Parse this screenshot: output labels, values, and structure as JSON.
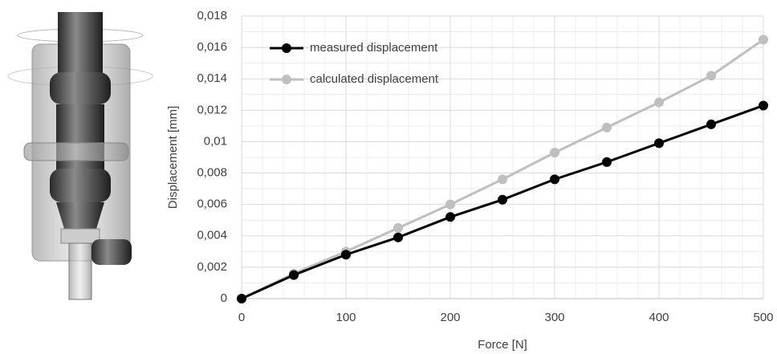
{
  "chart_data": {
    "type": "line",
    "xlabel": "Force [N]",
    "ylabel": "Displacement [mm]",
    "x": [
      0,
      50,
      100,
      150,
      200,
      250,
      300,
      350,
      400,
      450,
      500
    ],
    "series": [
      {
        "name": "measured displacement",
        "color": "#000000",
        "values": [
          0,
          0.0015,
          0.0028,
          0.0039,
          0.0052,
          0.0063,
          0.0076,
          0.0087,
          0.0099,
          0.0111,
          0.0123
        ]
      },
      {
        "name": "calculated displacement",
        "color": "#bfbfbf",
        "values": [
          0,
          0.0016,
          0.003,
          0.0045,
          0.006,
          0.0076,
          0.0093,
          0.0109,
          0.0125,
          0.0142,
          0.0165
        ]
      }
    ],
    "xlim": [
      0,
      500
    ],
    "xticks": [
      0,
      100,
      200,
      300,
      400,
      500
    ],
    "ylim": [
      0,
      0.018
    ],
    "yticks": [
      0,
      {
        "value": 0.002,
        "label": "0,002"
      },
      {
        "value": 0.004,
        "label": "0,004"
      },
      {
        "value": 0.006,
        "label": "0,006"
      },
      {
        "value": 0.008,
        "label": "0,008"
      },
      {
        "value": 0.01,
        "label": "0,01"
      },
      {
        "value": 0.012,
        "label": "0,012"
      },
      {
        "value": 0.014,
        "label": "0,014"
      },
      {
        "value": 0.016,
        "label": "0,016"
      },
      {
        "value": 0.018,
        "label": "0,018"
      }
    ],
    "grid": true,
    "legend": "upper left"
  }
}
